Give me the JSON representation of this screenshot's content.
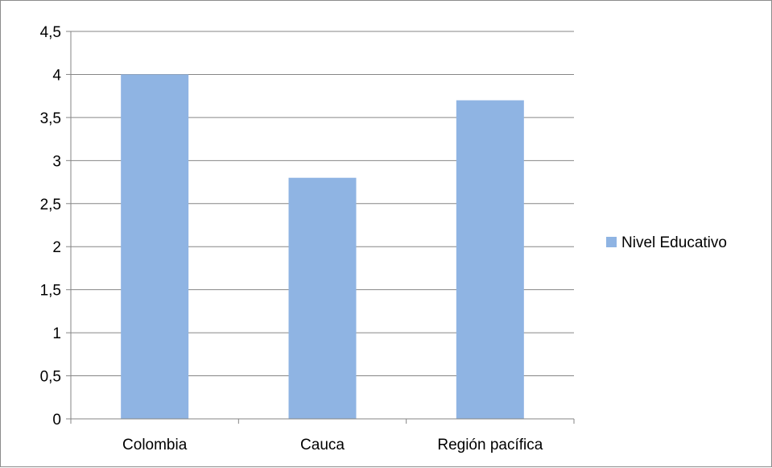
{
  "chart_data": {
    "type": "bar",
    "categories": [
      "Colombia",
      "Cauca",
      "Región pacífica"
    ],
    "series": [
      {
        "name": "Nivel Educativo",
        "values": [
          4.0,
          2.8,
          3.7
        ],
        "color": "#8fb4e3"
      }
    ],
    "yticks": [
      "0",
      "0,5",
      "1",
      "1,5",
      "2",
      "2,5",
      "3",
      "3,5",
      "4",
      "4,5"
    ],
    "ylim": [
      0,
      4.5
    ],
    "grid": true,
    "legend_position": "right"
  }
}
